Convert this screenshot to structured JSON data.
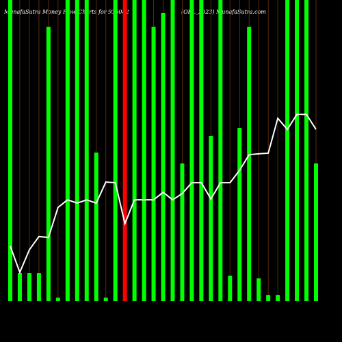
{
  "chart_data": {
    "type": "bar",
    "title": "MunafaSutra  Money Flow Charts for 936082",
    "subtitle": "(OKL_2023) MunafaSutra.com",
    "categories": [
      null,
      null,
      null,
      null,
      null,
      null,
      null,
      null,
      null,
      null,
      null,
      null,
      null,
      null,
      null,
      null,
      null,
      null,
      null,
      null,
      null,
      null,
      null,
      null,
      null,
      null,
      null,
      null,
      null,
      null,
      null,
      null,
      null
    ],
    "ylim": [
      0,
      100
    ],
    "grid": true,
    "grid_color": "#5a2a10",
    "background": "#000000",
    "series": [
      {
        "type": "bar",
        "values": [
          100,
          9.3,
          9.3,
          9.3,
          91.1,
          1.1,
          100,
          100,
          100,
          49.3,
          1.1,
          100,
          100,
          100,
          100,
          91.1,
          95.7,
          100,
          45.7,
          100,
          100,
          54.8,
          100,
          8.4,
          57.5,
          91.1,
          7.5,
          2,
          2,
          100,
          100,
          100,
          45.7
        ],
        "colors": [
          "#00ff00",
          "#00ff00",
          "#00ff00",
          "#00ff00",
          "#00ff00",
          "#00ff00",
          "#00ff00",
          "#00ff00",
          "#00ff00",
          "#00ff00",
          "#00ff00",
          "#00ff00",
          "#ff0000",
          "#00ff00",
          "#00ff00",
          "#00ff00",
          "#00ff00",
          "#00ff00",
          "#00ff00",
          "#00ff00",
          "#00ff00",
          "#00ff00",
          "#00ff00",
          "#00ff00",
          "#00ff00",
          "#00ff00",
          "#00ff00",
          "#00ff00",
          "#00ff00",
          "#00ff00",
          "#00ff00",
          "#00ff00",
          "#00ff00"
        ]
      },
      {
        "type": "line",
        "color": "#ffffff",
        "values": [
          18.2,
          9.5,
          17,
          21.4,
          21.1,
          31.1,
          33.6,
          32.5,
          33.6,
          32.5,
          39.5,
          39.3,
          25.7,
          33.6,
          33.6,
          33.6,
          36.1,
          33.6,
          35.7,
          39.3,
          39.3,
          33.9,
          39.3,
          39.3,
          43.4,
          48.6,
          48.9,
          49.1,
          60.7,
          57,
          62,
          62,
          57
        ]
      }
    ]
  }
}
